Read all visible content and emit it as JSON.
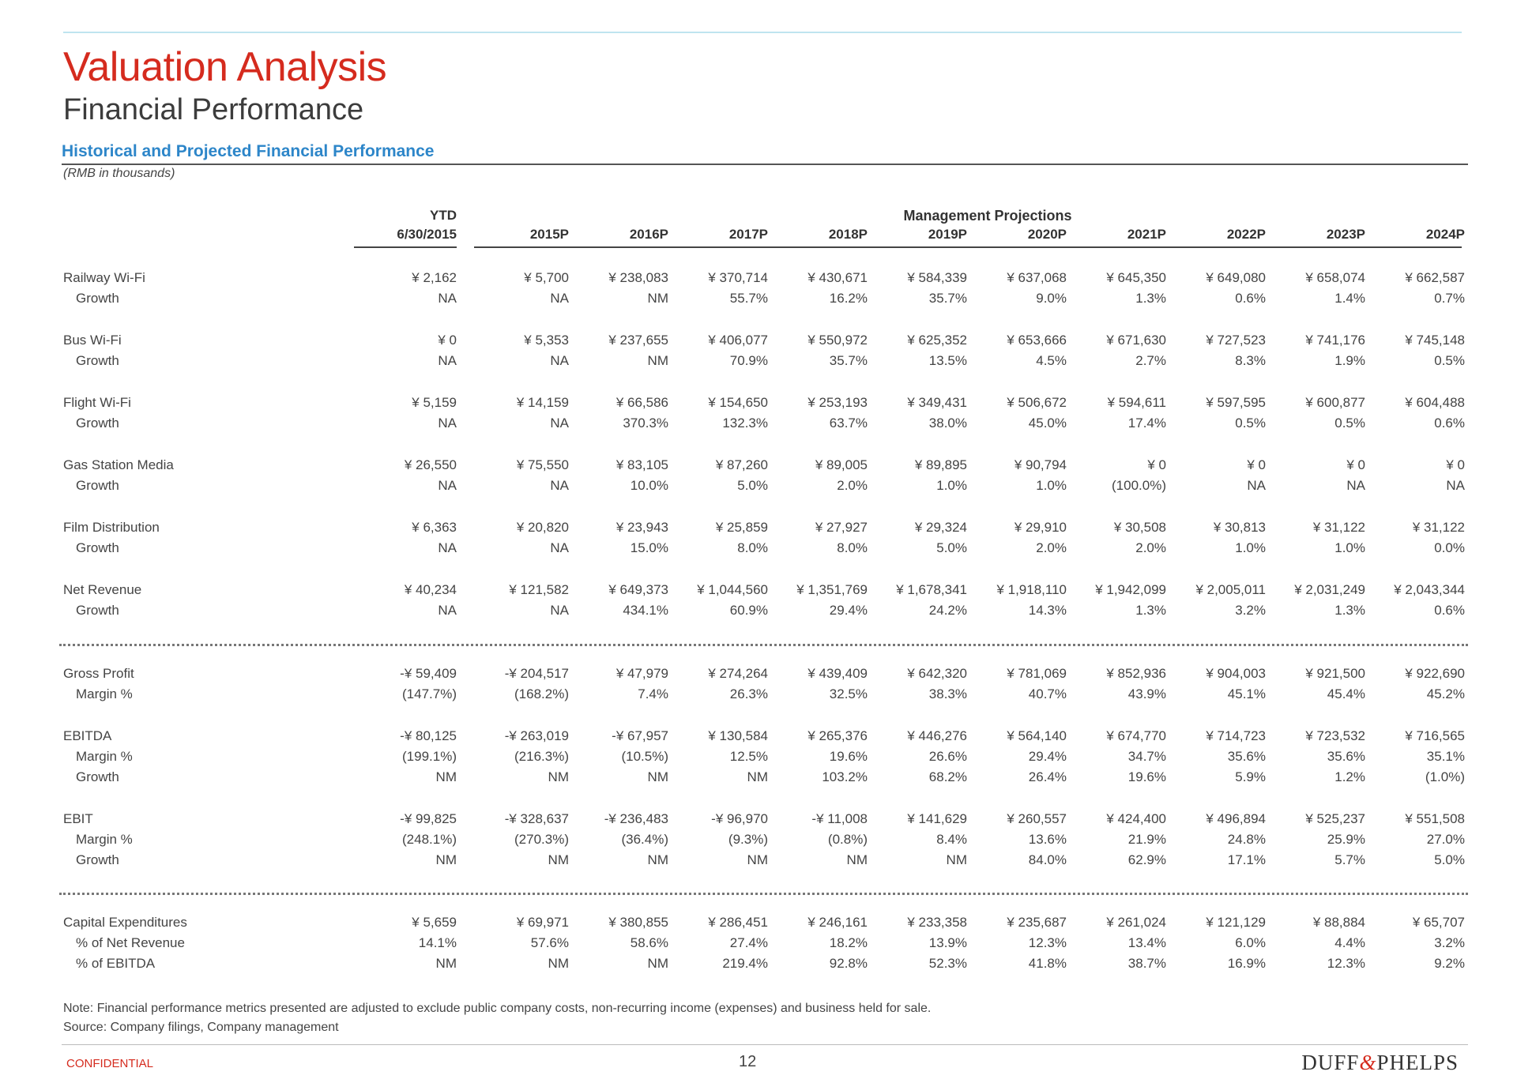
{
  "title": "Valuation Analysis",
  "subtitle": "Financial Performance",
  "section_title": "Historical and Projected Financial Performance",
  "section_sub": "(RMB in thousands)",
  "header": {
    "management": "Management Projections",
    "ytd_top": "YTD",
    "columns": [
      "6/30/2015",
      "2015P",
      "2016P",
      "2017P",
      "2018P",
      "2019P",
      "2020P",
      "2021P",
      "2022P",
      "2023P",
      "2024P"
    ]
  },
  "rows": [
    {
      "label": "Railway Wi-Fi",
      "values": [
        "¥ 2,162",
        "¥ 5,700",
        "¥ 238,083",
        "¥ 370,714",
        "¥ 430,671",
        "¥ 584,339",
        "¥ 637,068",
        "¥ 645,350",
        "¥ 649,080",
        "¥ 658,074",
        "¥ 662,587"
      ]
    },
    {
      "label": "Growth",
      "values": [
        "NA",
        "NA",
        "NM",
        "55.7%",
        "16.2%",
        "35.7%",
        "9.0%",
        "1.3%",
        "0.6%",
        "1.4%",
        "0.7%"
      ]
    },
    {
      "label": "Bus Wi-Fi",
      "values": [
        "¥ 0",
        "¥ 5,353",
        "¥ 237,655",
        "¥ 406,077",
        "¥ 550,972",
        "¥ 625,352",
        "¥ 653,666",
        "¥ 671,630",
        "¥ 727,523",
        "¥ 741,176",
        "¥ 745,148"
      ]
    },
    {
      "label": "Growth",
      "values": [
        "NA",
        "NA",
        "NM",
        "70.9%",
        "35.7%",
        "13.5%",
        "4.5%",
        "2.7%",
        "8.3%",
        "1.9%",
        "0.5%"
      ]
    },
    {
      "label": "Flight Wi-Fi",
      "values": [
        "¥ 5,159",
        "¥ 14,159",
        "¥ 66,586",
        "¥ 154,650",
        "¥ 253,193",
        "¥ 349,431",
        "¥ 506,672",
        "¥ 594,611",
        "¥ 597,595",
        "¥ 600,877",
        "¥ 604,488"
      ]
    },
    {
      "label": "Growth",
      "values": [
        "NA",
        "NA",
        "370.3%",
        "132.3%",
        "63.7%",
        "38.0%",
        "45.0%",
        "17.4%",
        "0.5%",
        "0.5%",
        "0.6%"
      ]
    },
    {
      "label": "Gas Station Media",
      "values": [
        "¥ 26,550",
        "¥ 75,550",
        "¥ 83,105",
        "¥ 87,260",
        "¥ 89,005",
        "¥ 89,895",
        "¥ 90,794",
        "¥ 0",
        "¥ 0",
        "¥ 0",
        "¥ 0"
      ]
    },
    {
      "label": "Growth",
      "values": [
        "NA",
        "NA",
        "10.0%",
        "5.0%",
        "2.0%",
        "1.0%",
        "1.0%",
        "(100.0%)",
        "NA",
        "NA",
        "NA"
      ]
    },
    {
      "label": "Film Distribution",
      "values": [
        "¥ 6,363",
        "¥ 20,820",
        "¥ 23,943",
        "¥ 25,859",
        "¥ 27,927",
        "¥ 29,324",
        "¥ 29,910",
        "¥ 30,508",
        "¥ 30,813",
        "¥ 31,122",
        "¥ 31,122"
      ]
    },
    {
      "label": "Growth",
      "values": [
        "NA",
        "NA",
        "15.0%",
        "8.0%",
        "8.0%",
        "5.0%",
        "2.0%",
        "2.0%",
        "1.0%",
        "1.0%",
        "0.0%"
      ]
    },
    {
      "label": "Net Revenue",
      "values": [
        "¥ 40,234",
        "¥ 121,582",
        "¥ 649,373",
        "¥ 1,044,560",
        "¥ 1,351,769",
        "¥ 1,678,341",
        "¥ 1,918,110",
        "¥ 1,942,099",
        "¥ 2,005,011",
        "¥ 2,031,249",
        "¥ 2,043,344"
      ]
    },
    {
      "label": "Growth",
      "values": [
        "NA",
        "NA",
        "434.1%",
        "60.9%",
        "29.4%",
        "24.2%",
        "14.3%",
        "1.3%",
        "3.2%",
        "1.3%",
        "0.6%"
      ]
    },
    {
      "label": "Gross Profit",
      "values": [
        "-¥ 59,409",
        "-¥ 204,517",
        "¥ 47,979",
        "¥ 274,264",
        "¥ 439,409",
        "¥ 642,320",
        "¥ 781,069",
        "¥ 852,936",
        "¥ 904,003",
        "¥ 921,500",
        "¥ 922,690"
      ]
    },
    {
      "label": "Margin %",
      "values": [
        "(147.7%)",
        "(168.2%)",
        "7.4%",
        "26.3%",
        "32.5%",
        "38.3%",
        "40.7%",
        "43.9%",
        "45.1%",
        "45.4%",
        "45.2%"
      ]
    },
    {
      "label": "EBITDA",
      "values": [
        "-¥ 80,125",
        "-¥ 263,019",
        "-¥ 67,957",
        "¥ 130,584",
        "¥ 265,376",
        "¥ 446,276",
        "¥ 564,140",
        "¥ 674,770",
        "¥ 714,723",
        "¥ 723,532",
        "¥ 716,565"
      ]
    },
    {
      "label": "Margin %",
      "values": [
        "(199.1%)",
        "(216.3%)",
        "(10.5%)",
        "12.5%",
        "19.6%",
        "26.6%",
        "29.4%",
        "34.7%",
        "35.6%",
        "35.6%",
        "35.1%"
      ]
    },
    {
      "label": "Growth",
      "values": [
        "NM",
        "NM",
        "NM",
        "NM",
        "103.2%",
        "68.2%",
        "26.4%",
        "19.6%",
        "5.9%",
        "1.2%",
        "(1.0%)"
      ]
    },
    {
      "label": "EBIT",
      "values": [
        "-¥ 99,825",
        "-¥ 328,637",
        "-¥ 236,483",
        "-¥ 96,970",
        "-¥ 11,008",
        "¥ 141,629",
        "¥ 260,557",
        "¥ 424,400",
        "¥ 496,894",
        "¥ 525,237",
        "¥ 551,508"
      ]
    },
    {
      "label": "Margin %",
      "values": [
        "(248.1%)",
        "(270.3%)",
        "(36.4%)",
        "(9.3%)",
        "(0.8%)",
        "8.4%",
        "13.6%",
        "21.9%",
        "24.8%",
        "25.9%",
        "27.0%"
      ]
    },
    {
      "label": "Growth",
      "values": [
        "NM",
        "NM",
        "NM",
        "NM",
        "NM",
        "NM",
        "84.0%",
        "62.9%",
        "17.1%",
        "5.7%",
        "5.0%"
      ]
    },
    {
      "label": "Capital Expenditures",
      "values": [
        "¥ 5,659",
        "¥ 69,971",
        "¥ 380,855",
        "¥ 286,451",
        "¥ 246,161",
        "¥ 233,358",
        "¥ 235,687",
        "¥ 261,024",
        "¥ 121,129",
        "¥ 88,884",
        "¥ 65,707"
      ]
    },
    {
      "label": "% of Net Revenue",
      "values": [
        "14.1%",
        "57.6%",
        "58.6%",
        "27.4%",
        "18.2%",
        "13.9%",
        "12.3%",
        "13.4%",
        "6.0%",
        "4.4%",
        "3.2%"
      ]
    },
    {
      "label": "% of EBITDA",
      "values": [
        "NM",
        "NM",
        "NM",
        "219.4%",
        "92.8%",
        "52.3%",
        "41.8%",
        "38.7%",
        "16.9%",
        "12.3%",
        "9.2%"
      ]
    }
  ],
  "note": "Note: Financial performance metrics presented are adjusted to exclude public company costs, non-recurring income (expenses) and business held for sale.",
  "source": "Source: Company filings, Company management",
  "confidential": "CONFIDENTIAL",
  "page_number": "12",
  "logo_left": "DUFF",
  "logo_amp": "&",
  "logo_right": "PHELPS"
}
